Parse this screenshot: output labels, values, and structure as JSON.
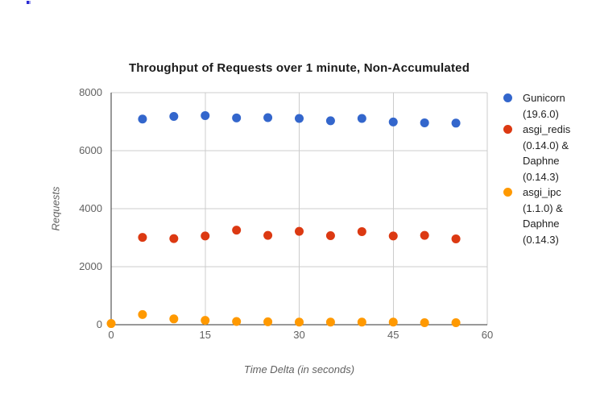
{
  "chart": {
    "title": "Throughput of Requests over 1 minute, Non-Accumulated",
    "x_axis_title": "Time Delta (in seconds)",
    "y_axis_title": "Requests"
  },
  "legend": {
    "items": [
      {
        "color": "#3366CC",
        "lines": [
          "Gunicorn",
          "(19.6.0)"
        ]
      },
      {
        "color": "#DC3912",
        "lines": [
          "asgi_redis",
          "(0.14.0) &",
          "Daphne",
          "(0.14.3)"
        ]
      },
      {
        "color": "#FF9900",
        "lines": [
          "asgi_ipc",
          "(1.1.0) &",
          "Daphne",
          "(0.14.3)"
        ]
      }
    ]
  },
  "chart_data": {
    "type": "scatter",
    "title": "Throughput of Requests over 1 minute, Non-Accumulated",
    "xlabel": "Time Delta (in seconds)",
    "ylabel": "Requests",
    "xlim": [
      0,
      60
    ],
    "ylim": [
      0,
      8000
    ],
    "x_ticks": [
      0,
      15,
      30,
      45,
      60
    ],
    "y_ticks": [
      0,
      2000,
      4000,
      6000,
      8000
    ],
    "grid": true,
    "legend_position": "right",
    "colors": {
      "grid": "#cccccc",
      "axis": "#333333",
      "tick_text": "#616161",
      "title_text": "#1a1a1a",
      "legend_text": "#222222"
    },
    "series": [
      {
        "name": "Gunicorn (19.6.0)",
        "color": "#3366CC",
        "x": [
          5,
          10,
          15,
          20,
          25,
          30,
          35,
          40,
          45,
          50,
          55
        ],
        "y": [
          7090,
          7180,
          7210,
          7130,
          7140,
          7110,
          7030,
          7110,
          6990,
          6960,
          6950
        ]
      },
      {
        "name": "asgi_redis (0.14.0) & Daphne (0.14.3)",
        "color": "#DC3912",
        "x": [
          5,
          10,
          15,
          20,
          25,
          30,
          35,
          40,
          45,
          50,
          55
        ],
        "y": [
          3010,
          2970,
          3060,
          3260,
          3080,
          3220,
          3070,
          3210,
          3060,
          3080,
          2960
        ]
      },
      {
        "name": "asgi_ipc (1.1.0) & Daphne (0.14.3)",
        "color": "#FF9900",
        "x": [
          0,
          5,
          10,
          15,
          20,
          25,
          30,
          35,
          40,
          45,
          50,
          55
        ],
        "y": [
          40,
          350,
          200,
          150,
          110,
          100,
          90,
          90,
          90,
          90,
          70,
          70
        ]
      }
    ]
  }
}
